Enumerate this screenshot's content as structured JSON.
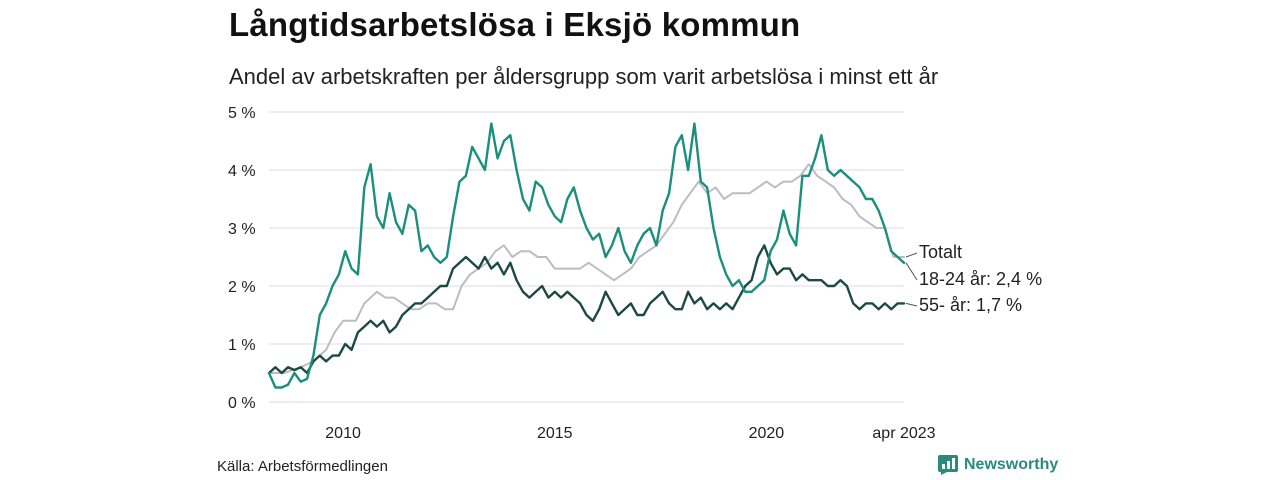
{
  "title": "Långtidsarbetslösa i Eksjö kommun",
  "subtitle": "Andel av arbetskraften per åldersgrupp som varit arbetslösa i minst ett år",
  "source": "Källa: Arbetsförmedlingen",
  "brand": "Newsworthy",
  "colors": {
    "youth": "#1a8f7d",
    "senior": "#1d4a40",
    "total": "#bcbcc6",
    "brand": "#2a8a7e"
  },
  "chart_data": {
    "type": "line",
    "ylim": [
      0,
      5
    ],
    "xlim": [
      2008.25,
      2023.25
    ],
    "yticks": [
      {
        "v": 0,
        "label": "0 %"
      },
      {
        "v": 1,
        "label": "1 %"
      },
      {
        "v": 2,
        "label": "2 %"
      },
      {
        "v": 3,
        "label": "3 %"
      },
      {
        "v": 4,
        "label": "4 %"
      },
      {
        "v": 5,
        "label": "5 %"
      }
    ],
    "xticks": [
      {
        "v": 2010,
        "label": "2010"
      },
      {
        "v": 2015,
        "label": "2015"
      },
      {
        "v": 2020,
        "label": "2020"
      },
      {
        "v": 2023.25,
        "label": "apr 2023"
      }
    ],
    "grid": true,
    "series": [
      {
        "key": "total",
        "name": "Totalt",
        "label": "Totalt",
        "x": [
          2008.25,
          2008.6,
          2009.0,
          2009.3,
          2009.6,
          2009.8,
          2010.0,
          2010.3,
          2010.5,
          2010.8,
          2011.0,
          2011.2,
          2011.4,
          2011.6,
          2011.8,
          2012.0,
          2012.2,
          2012.4,
          2012.6,
          2012.8,
          2013.0,
          2013.2,
          2013.4,
          2013.6,
          2013.8,
          2014.0,
          2014.2,
          2014.4,
          2014.6,
          2014.8,
          2015.0,
          2015.2,
          2015.4,
          2015.6,
          2015.8,
          2016.0,
          2016.2,
          2016.4,
          2016.6,
          2016.8,
          2017.0,
          2017.2,
          2017.4,
          2017.6,
          2017.8,
          2018.0,
          2018.2,
          2018.4,
          2018.6,
          2018.8,
          2019.0,
          2019.2,
          2019.4,
          2019.6,
          2019.8,
          2020.0,
          2020.2,
          2020.4,
          2020.6,
          2020.8,
          2021.0,
          2021.2,
          2021.4,
          2021.6,
          2021.8,
          2022.0,
          2022.2,
          2022.4,
          2022.6,
          2022.8,
          2023.0,
          2023.25
        ],
        "y": [
          0.5,
          0.5,
          0.6,
          0.7,
          0.9,
          1.2,
          1.4,
          1.4,
          1.7,
          1.9,
          1.8,
          1.8,
          1.7,
          1.6,
          1.6,
          1.7,
          1.7,
          1.6,
          1.6,
          2.0,
          2.2,
          2.3,
          2.4,
          2.6,
          2.7,
          2.5,
          2.6,
          2.6,
          2.5,
          2.5,
          2.3,
          2.3,
          2.3,
          2.3,
          2.4,
          2.3,
          2.2,
          2.1,
          2.2,
          2.3,
          2.5,
          2.6,
          2.7,
          2.9,
          3.1,
          3.4,
          3.6,
          3.8,
          3.6,
          3.7,
          3.5,
          3.6,
          3.6,
          3.6,
          3.7,
          3.8,
          3.7,
          3.8,
          3.8,
          3.9,
          4.1,
          3.9,
          3.8,
          3.7,
          3.5,
          3.4,
          3.2,
          3.1,
          3.0,
          3.0,
          2.5,
          2.5
        ]
      },
      {
        "key": "youth",
        "name": "18-24 år",
        "label": "18-24 år: 2,4 %",
        "x": [
          2008.25,
          2008.4,
          2008.55,
          2008.7,
          2008.85,
          2009.0,
          2009.15,
          2009.3,
          2009.45,
          2009.6,
          2009.75,
          2009.9,
          2010.05,
          2010.2,
          2010.35,
          2010.5,
          2010.65,
          2010.8,
          2010.95,
          2011.1,
          2011.25,
          2011.4,
          2011.55,
          2011.7,
          2011.85,
          2012.0,
          2012.15,
          2012.3,
          2012.45,
          2012.6,
          2012.75,
          2012.9,
          2013.05,
          2013.2,
          2013.35,
          2013.5,
          2013.65,
          2013.8,
          2013.95,
          2014.1,
          2014.25,
          2014.4,
          2014.55,
          2014.7,
          2014.85,
          2015.0,
          2015.15,
          2015.3,
          2015.45,
          2015.6,
          2015.75,
          2015.9,
          2016.05,
          2016.2,
          2016.35,
          2016.5,
          2016.65,
          2016.8,
          2016.95,
          2017.1,
          2017.25,
          2017.4,
          2017.55,
          2017.7,
          2017.85,
          2018.0,
          2018.15,
          2018.3,
          2018.45,
          2018.6,
          2018.75,
          2018.9,
          2019.05,
          2019.2,
          2019.35,
          2019.5,
          2019.65,
          2019.8,
          2019.95,
          2020.1,
          2020.25,
          2020.4,
          2020.55,
          2020.7,
          2020.85,
          2021.0,
          2021.15,
          2021.3,
          2021.45,
          2021.6,
          2021.75,
          2021.9,
          2022.05,
          2022.2,
          2022.35,
          2022.5,
          2022.65,
          2022.8,
          2022.95,
          2023.1,
          2023.25
        ],
        "y": [
          0.5,
          0.25,
          0.25,
          0.3,
          0.5,
          0.35,
          0.4,
          0.8,
          1.5,
          1.7,
          2.0,
          2.2,
          2.6,
          2.3,
          2.2,
          3.7,
          4.1,
          3.2,
          3.0,
          3.6,
          3.1,
          2.9,
          3.4,
          3.3,
          2.6,
          2.7,
          2.5,
          2.4,
          2.5,
          3.2,
          3.8,
          3.9,
          4.4,
          4.2,
          4.0,
          4.8,
          4.2,
          4.5,
          4.6,
          4.0,
          3.5,
          3.3,
          3.8,
          3.7,
          3.4,
          3.2,
          3.1,
          3.5,
          3.7,
          3.3,
          3.0,
          2.8,
          2.9,
          2.5,
          2.7,
          3.0,
          2.6,
          2.4,
          2.7,
          2.9,
          3.0,
          2.7,
          3.3,
          3.6,
          4.4,
          4.6,
          4.0,
          4.8,
          3.8,
          3.7,
          3.0,
          2.5,
          2.2,
          2.0,
          2.1,
          1.9,
          1.9,
          2.0,
          2.1,
          2.6,
          2.8,
          3.3,
          2.9,
          2.7,
          3.9,
          3.9,
          4.2,
          4.6,
          4.0,
          3.9,
          4.0,
          3.9,
          3.8,
          3.7,
          3.5,
          3.5,
          3.3,
          3.0,
          2.6,
          2.5,
          2.4
        ]
      },
      {
        "key": "senior",
        "name": "55- år",
        "label": "55- år: 1,7 %",
        "x": [
          2008.25,
          2008.4,
          2008.55,
          2008.7,
          2008.85,
          2009.0,
          2009.15,
          2009.3,
          2009.45,
          2009.6,
          2009.75,
          2009.9,
          2010.05,
          2010.2,
          2010.35,
          2010.5,
          2010.65,
          2010.8,
          2010.95,
          2011.1,
          2011.25,
          2011.4,
          2011.55,
          2011.7,
          2011.85,
          2012.0,
          2012.15,
          2012.3,
          2012.45,
          2012.6,
          2012.75,
          2012.9,
          2013.05,
          2013.2,
          2013.35,
          2013.5,
          2013.65,
          2013.8,
          2013.95,
          2014.1,
          2014.25,
          2014.4,
          2014.55,
          2014.7,
          2014.85,
          2015.0,
          2015.15,
          2015.3,
          2015.45,
          2015.6,
          2015.75,
          2015.9,
          2016.05,
          2016.2,
          2016.35,
          2016.5,
          2016.65,
          2016.8,
          2016.95,
          2017.1,
          2017.25,
          2017.4,
          2017.55,
          2017.7,
          2017.85,
          2018.0,
          2018.15,
          2018.3,
          2018.45,
          2018.6,
          2018.75,
          2018.9,
          2019.05,
          2019.2,
          2019.35,
          2019.5,
          2019.65,
          2019.8,
          2019.95,
          2020.1,
          2020.25,
          2020.4,
          2020.55,
          2020.7,
          2020.85,
          2021.0,
          2021.15,
          2021.3,
          2021.45,
          2021.6,
          2021.75,
          2021.9,
          2022.05,
          2022.2,
          2022.35,
          2022.5,
          2022.65,
          2022.8,
          2022.95,
          2023.1,
          2023.25
        ],
        "y": [
          0.5,
          0.6,
          0.5,
          0.6,
          0.55,
          0.6,
          0.5,
          0.7,
          0.8,
          0.7,
          0.8,
          0.8,
          1.0,
          0.9,
          1.2,
          1.3,
          1.4,
          1.3,
          1.4,
          1.2,
          1.3,
          1.5,
          1.6,
          1.7,
          1.7,
          1.8,
          1.9,
          2.0,
          2.0,
          2.3,
          2.4,
          2.5,
          2.4,
          2.3,
          2.5,
          2.3,
          2.4,
          2.2,
          2.4,
          2.1,
          1.9,
          1.8,
          1.9,
          2.0,
          1.8,
          1.9,
          1.8,
          1.9,
          1.8,
          1.7,
          1.5,
          1.4,
          1.6,
          1.9,
          1.7,
          1.5,
          1.6,
          1.7,
          1.5,
          1.5,
          1.7,
          1.8,
          1.9,
          1.7,
          1.6,
          1.6,
          1.9,
          1.7,
          1.8,
          1.6,
          1.7,
          1.6,
          1.7,
          1.6,
          1.8,
          2.0,
          2.1,
          2.5,
          2.7,
          2.4,
          2.2,
          2.3,
          2.3,
          2.1,
          2.2,
          2.1,
          2.1,
          2.1,
          2.0,
          2.0,
          2.1,
          2.0,
          1.7,
          1.6,
          1.7,
          1.7,
          1.6,
          1.7,
          1.6,
          1.7,
          1.7
        ]
      }
    ]
  }
}
